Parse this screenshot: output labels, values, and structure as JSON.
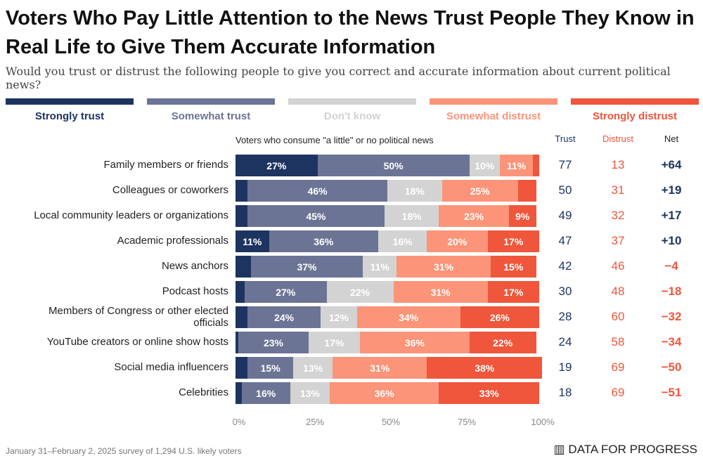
{
  "title": "Voters Who Pay Little Attention to the News Trust People They Know in Real Life to Give Them Accurate Information",
  "subtitle": "Would you trust or distrust the following people to give you correct and accurate information about current political news?",
  "footer": "January 31–February 2, 2025 survey of 1,294 U.S. likely voters",
  "logo": "DATA FOR PROGRESS",
  "chart_data": {
    "type": "bar",
    "orientation": "horizontal",
    "stacked": true,
    "note": "Voters who consume \"a little\" or no political news",
    "categories": [
      "Family members or friends",
      "Colleagues or coworkers",
      "Local community leaders or organizations",
      "Academic professionals",
      "News anchors",
      "Podcast hosts",
      "Members of Congress or other elected officials",
      "YouTube creators or online show hosts",
      "Social media influencers",
      "Celebrities"
    ],
    "series": [
      {
        "name": "Strongly trust",
        "color": "#1d3461",
        "values": [
          27,
          4,
          4,
          11,
          5,
          3,
          4,
          1,
          4,
          2
        ]
      },
      {
        "name": "Somewhat trust",
        "color": "#6b7494",
        "values": [
          50,
          46,
          45,
          36,
          37,
          27,
          24,
          23,
          15,
          16
        ]
      },
      {
        "name": "Don't know",
        "color": "#d3d3d3",
        "values": [
          10,
          18,
          18,
          16,
          11,
          22,
          12,
          17,
          13,
          13
        ]
      },
      {
        "name": "Somewhat distrust",
        "color": "#fb9478",
        "values": [
          11,
          25,
          23,
          20,
          31,
          31,
          34,
          36,
          31,
          36
        ]
      },
      {
        "name": "Strongly distrust",
        "color": "#ef563b",
        "values": [
          2,
          6,
          9,
          17,
          15,
          17,
          26,
          22,
          38,
          33
        ]
      }
    ],
    "xlim": [
      0,
      100
    ],
    "xticks": [
      "0%",
      "25%",
      "50%",
      "75%",
      "100%"
    ],
    "summary_headers": {
      "trust": "Trust",
      "distrust": "Distrust",
      "net": "Net"
    },
    "trust": [
      77,
      50,
      49,
      47,
      42,
      30,
      28,
      24,
      19,
      18
    ],
    "distrust": [
      13,
      31,
      32,
      37,
      46,
      48,
      60,
      58,
      69,
      69
    ],
    "net": [
      "+64",
      "+19",
      "+17",
      "+10",
      "−4",
      "−18",
      "−32",
      "−34",
      "−50",
      "−51"
    ]
  }
}
